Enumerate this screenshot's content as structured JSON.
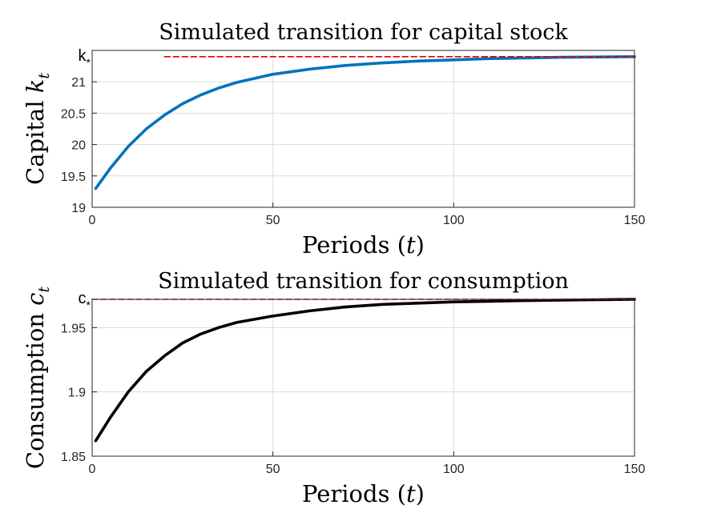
{
  "chart_data": [
    {
      "type": "line",
      "title": "Simulated transition for capital stock",
      "xlabel": "Periods (t)",
      "ylabel": "Capital k",
      "ylabel_sub": "t",
      "xlim": [
        0,
        150
      ],
      "ylim": [
        19,
        21.5
      ],
      "xticks": [
        0,
        50,
        100,
        150
      ],
      "yticks": [
        19,
        19.5,
        20,
        20.5,
        21
      ],
      "steady_state_label": "k",
      "steady_state_value": 21.4,
      "grid": true,
      "series": [
        {
          "color": "#0072BD",
          "style": "solid",
          "x": [
            1,
            5,
            10,
            15,
            20,
            25,
            30,
            35,
            40,
            50,
            60,
            70,
            80,
            90,
            100,
            110,
            120,
            130,
            140,
            150
          ],
          "y": [
            19.3,
            19.62,
            19.97,
            20.25,
            20.47,
            20.65,
            20.79,
            20.9,
            20.99,
            21.12,
            21.2,
            21.26,
            21.3,
            21.33,
            21.35,
            21.37,
            21.38,
            21.39,
            21.395,
            21.4
          ]
        },
        {
          "color": "#E00000",
          "style": "dashed",
          "x": [
            20,
            150
          ],
          "y": [
            21.4,
            21.4
          ]
        }
      ]
    },
    {
      "type": "line",
      "title": "Simulated transition for consumption",
      "xlabel": "Periods (t)",
      "ylabel": "Consumption c",
      "ylabel_sub": "t",
      "xlim": [
        0,
        150
      ],
      "ylim": [
        1.85,
        1.972
      ],
      "xticks": [
        0,
        50,
        100,
        150
      ],
      "yticks": [
        1.85,
        1.9,
        1.95
      ],
      "steady_state_label": "c",
      "steady_state_value": 1.972,
      "grid": true,
      "series": [
        {
          "color": "#000000",
          "style": "solid",
          "x": [
            1,
            5,
            10,
            15,
            20,
            25,
            30,
            35,
            40,
            50,
            60,
            70,
            80,
            90,
            100,
            110,
            120,
            130,
            140,
            150
          ],
          "y": [
            1.862,
            1.88,
            1.9,
            1.916,
            1.928,
            1.938,
            1.945,
            1.95,
            1.954,
            1.959,
            1.963,
            1.966,
            1.968,
            1.969,
            1.97,
            1.9705,
            1.971,
            1.9714,
            1.9717,
            1.972
          ]
        },
        {
          "color": "#E00000",
          "style": "dashed",
          "x": [
            0,
            150
          ],
          "y": [
            1.972,
            1.972
          ]
        }
      ]
    }
  ]
}
